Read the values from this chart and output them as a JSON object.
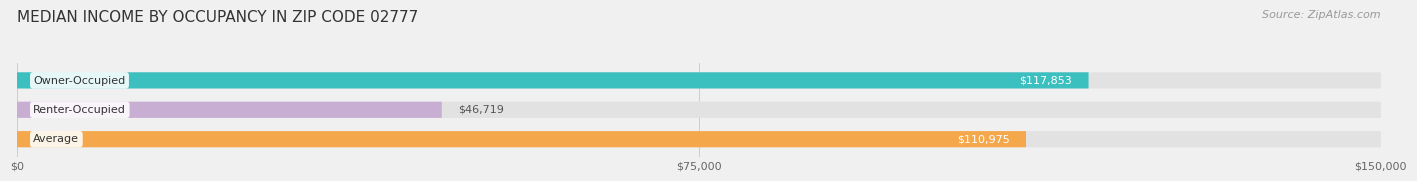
{
  "title": "MEDIAN INCOME BY OCCUPANCY IN ZIP CODE 02777",
  "source": "Source: ZipAtlas.com",
  "categories": [
    "Owner-Occupied",
    "Renter-Occupied",
    "Average"
  ],
  "values": [
    117853,
    46719,
    110975
  ],
  "bar_colors": [
    "#3bbfbf",
    "#c9aed4",
    "#f5a84b"
  ],
  "label_colors": [
    "#ffffff",
    "#555555",
    "#ffffff"
  ],
  "xlim": [
    0,
    150000
  ],
  "xticks": [
    0,
    75000,
    150000
  ],
  "xtick_labels": [
    "$0",
    "$75,000",
    "$150,000"
  ],
  "bar_height": 0.55,
  "background_color": "#f0f0f0",
  "bar_bg_color": "#e2e2e2",
  "value_labels": [
    "$117,853",
    "$46,719",
    "$110,975"
  ],
  "title_fontsize": 11,
  "source_fontsize": 8,
  "label_fontsize": 8,
  "tick_fontsize": 8
}
